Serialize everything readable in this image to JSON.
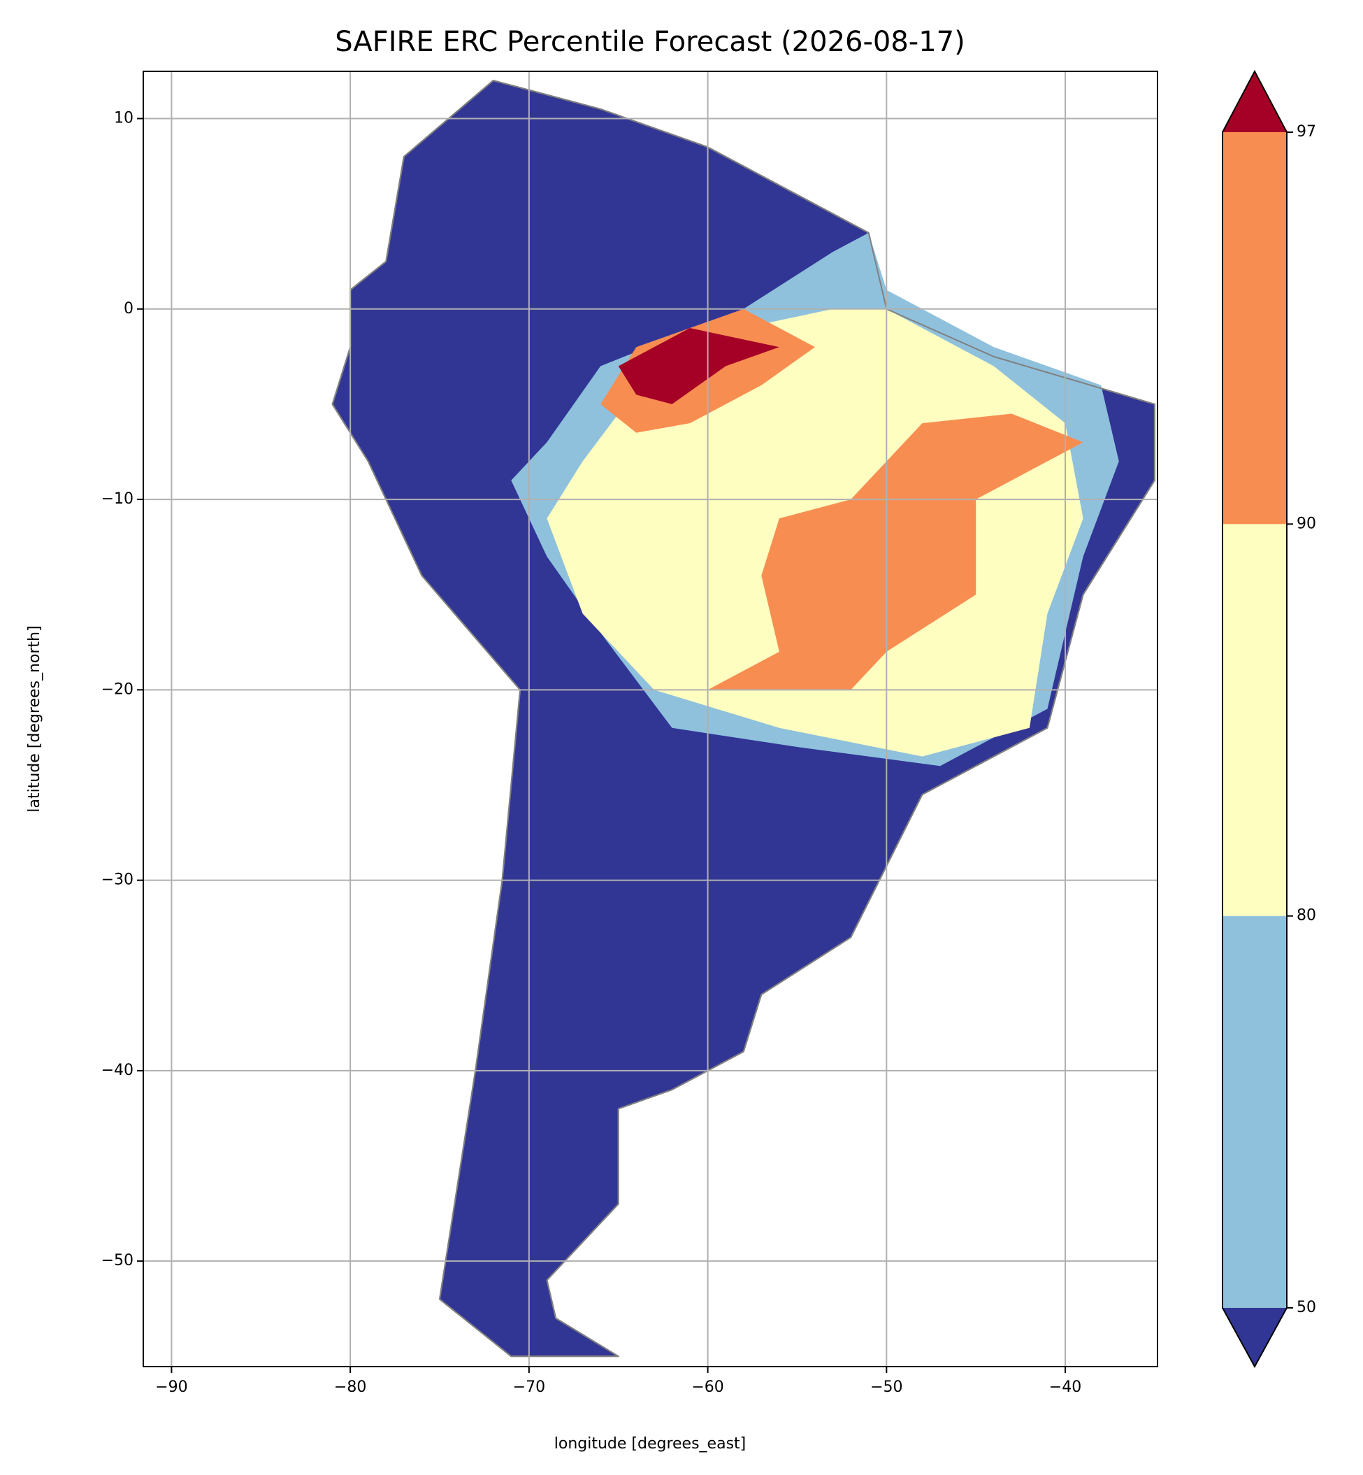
{
  "chart_data": {
    "type": "map",
    "title": "SAFIRE ERC Percentile Forecast (2026-08-17)",
    "x_label": "longitude [degrees_east]",
    "y_label": "latitude [degrees_north]",
    "xlim": [
      -91.58,
      -34.84
    ],
    "ylim": [
      -55.54,
      12.48
    ],
    "xticks": [
      {
        "value": -90,
        "label": "−90"
      },
      {
        "value": -80,
        "label": "−80"
      },
      {
        "value": -70,
        "label": "−70"
      },
      {
        "value": -60,
        "label": "−60"
      },
      {
        "value": -50,
        "label": "−50"
      },
      {
        "value": -40,
        "label": "−40"
      }
    ],
    "yticks": [
      {
        "value": -50,
        "label": "−50"
      },
      {
        "value": -40,
        "label": "−40"
      },
      {
        "value": -30,
        "label": "−30"
      },
      {
        "value": -20,
        "label": "−20"
      },
      {
        "value": -10,
        "label": "−10"
      },
      0,
      10
    ],
    "grid": true,
    "colorbar": {
      "levels": [
        50,
        80,
        90,
        97
      ],
      "colors": [
        "#8fc1dd",
        "#fefec0",
        "#f88d52"
      ],
      "under_color": "#313695",
      "over_color": "#a50026"
    }
  }
}
